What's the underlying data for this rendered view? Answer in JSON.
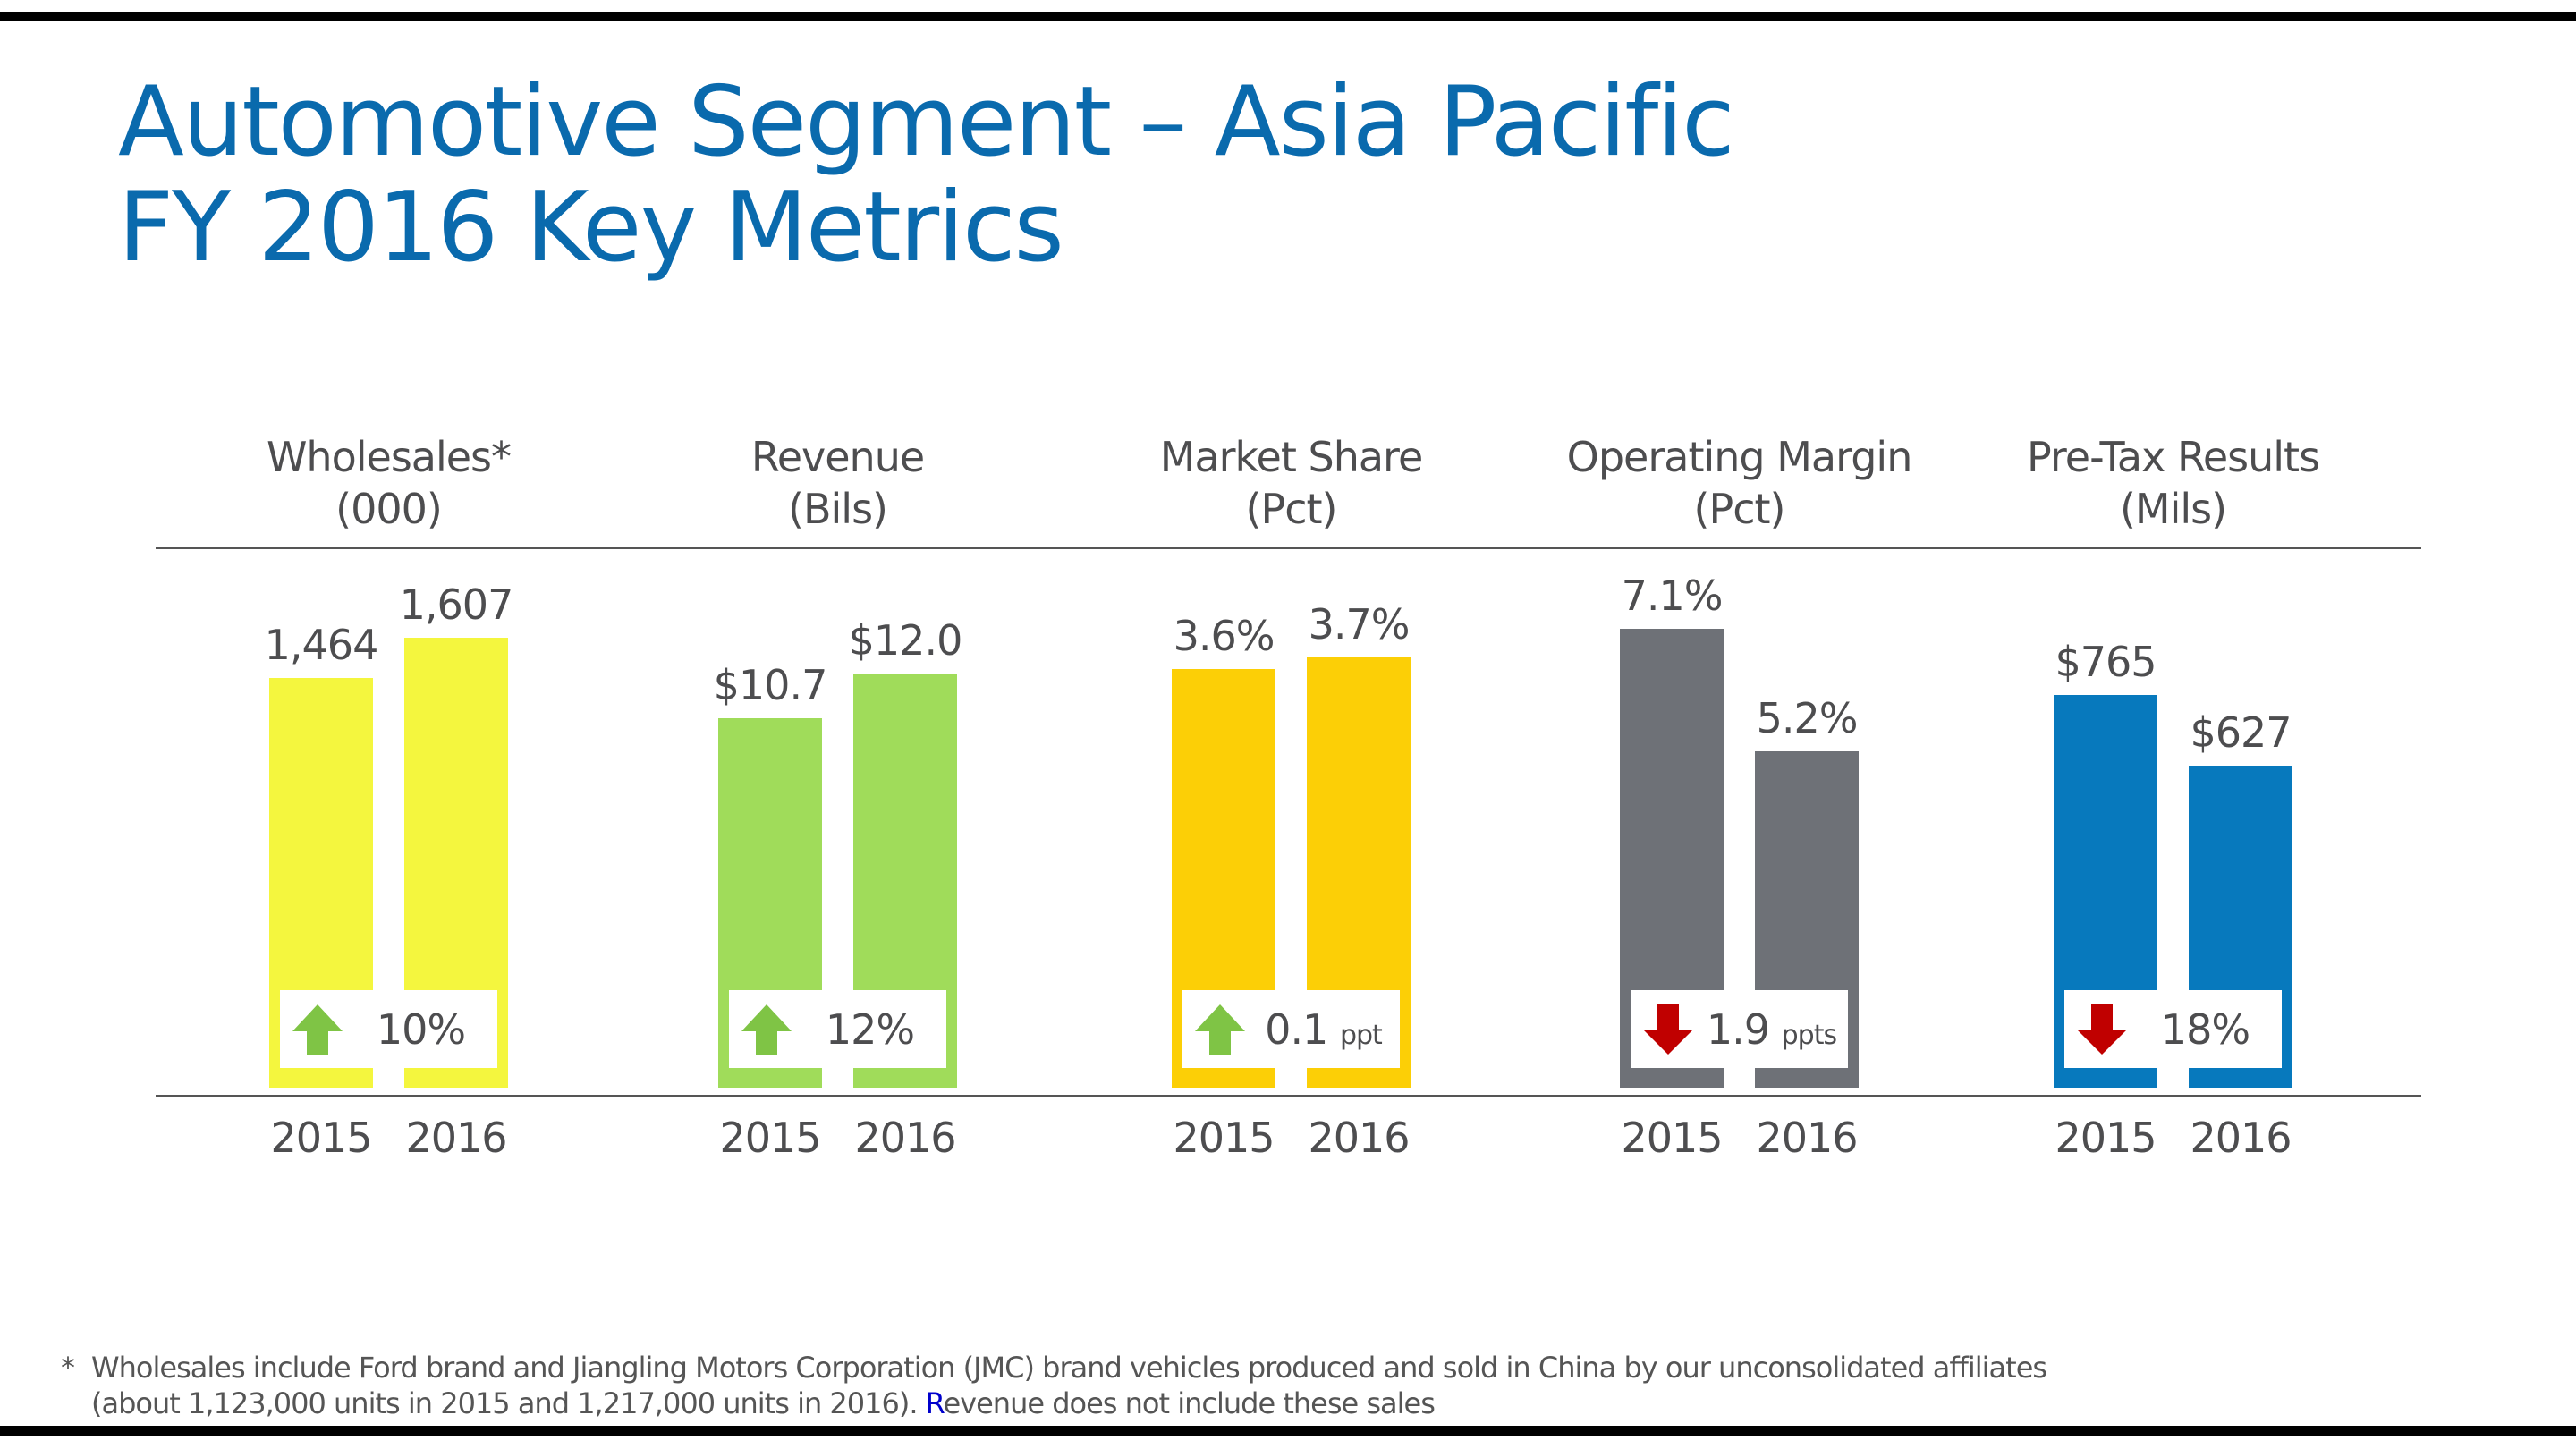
{
  "title_line1": "Automotive Segment – Asia Pacific",
  "title_line2": "FY 2016 Key Metrics",
  "chart_data": {
    "type": "bar",
    "categories": [
      "2015",
      "2016"
    ],
    "panels": [
      {
        "header1": "Wholesales*",
        "header2": "(000)",
        "values": [
          1464,
          1607
        ],
        "labels": [
          "1,464",
          "1,607"
        ],
        "change": "10%",
        "change_unit": "",
        "direction": "up",
        "color": "#f4f63e"
      },
      {
        "header1": "Revenue",
        "header2": "(Bils)",
        "values": [
          10.7,
          12.0
        ],
        "labels": [
          "$10.7",
          "$12.0"
        ],
        "change": "12%",
        "change_unit": "",
        "direction": "up",
        "color": "#a0dc5a"
      },
      {
        "header1": "Market Share",
        "header2": "(Pct)",
        "values": [
          3.6,
          3.7
        ],
        "labels": [
          "3.6%",
          "3.7%"
        ],
        "change": "0.1",
        "change_unit": "ppt",
        "direction": "up",
        "color": "#fccf06"
      },
      {
        "header1": "Operating Margin",
        "header2": "(Pct)",
        "values": [
          7.1,
          5.2
        ],
        "labels": [
          "7.1%",
          "5.2%"
        ],
        "change": "1.9",
        "change_unit": "ppts",
        "direction": "down",
        "color": "#6e7177"
      },
      {
        "header1": "Pre-Tax Results",
        "header2": "(Mils)",
        "values": [
          765,
          627
        ],
        "labels": [
          "$765",
          "$627"
        ],
        "change": "18%",
        "change_unit": "",
        "direction": "down",
        "color": "#0779bd"
      }
    ],
    "arrow_colors": {
      "up": "#7fc445",
      "down": "#c00000"
    }
  },
  "footnote": {
    "star": "*",
    "line1": "Wholesales include Ford brand and Jiangling Motors Corporation (JMC) brand vehicles produced and sold in China by our unconsolidated affiliates",
    "line2a": "(about 1,123,000 units in 2015 and 1,217,000 units in 2016).  ",
    "line2b": "R",
    "line2c": "evenue does not include these sales"
  }
}
